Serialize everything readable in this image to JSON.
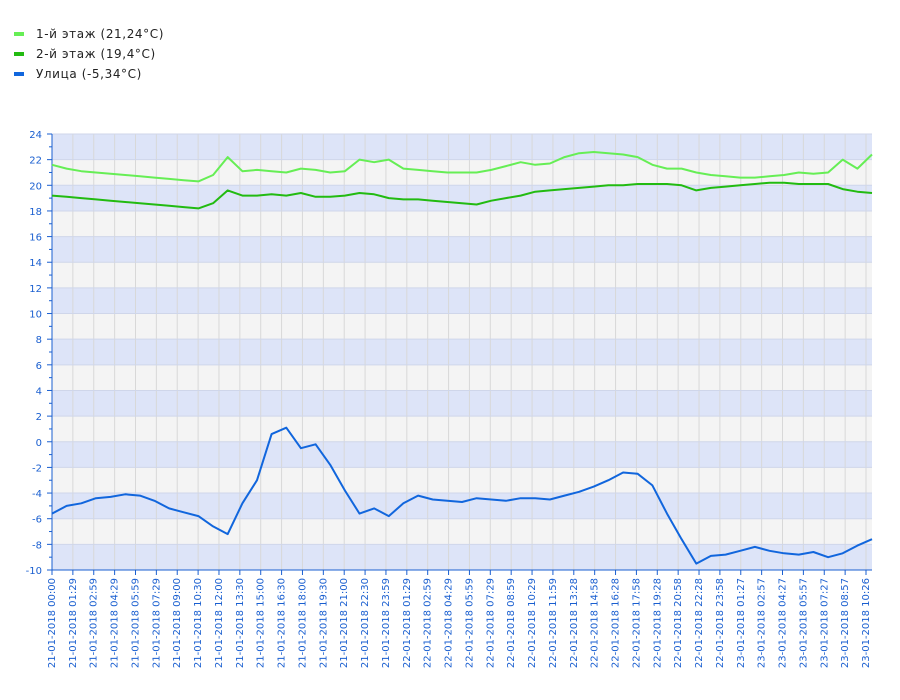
{
  "chart_data": {
    "type": "line",
    "title": "",
    "xlabel": "",
    "ylabel": "",
    "ylim": [
      -10,
      24
    ],
    "y_ticks": [
      -10,
      -8,
      -6,
      -4,
      -2,
      0,
      2,
      4,
      6,
      8,
      10,
      12,
      14,
      16,
      18,
      20,
      22,
      24
    ],
    "x_tick_labels": [
      "21-01-2018 00:00",
      "21-01-2018 01:29",
      "21-01-2018 02:59",
      "21-01-2018 04:29",
      "21-01-2018 05:59",
      "21-01-2018 07:29",
      "21-01-2018 09:00",
      "21-01-2018 10:30",
      "21-01-2018 12:00",
      "21-01-2018 13:30",
      "21-01-2018 15:00",
      "21-01-2018 16:30",
      "21-01-2018 18:00",
      "21-01-2018 19:30",
      "21-01-2018 21:00",
      "21-01-2018 22:30",
      "21-01-2018 23:59",
      "22-01-2018 01:29",
      "22-01-2018 02:59",
      "22-01-2018 04:29",
      "22-01-2018 05:59",
      "22-01-2018 07:29",
      "22-01-2018 08:59",
      "22-01-2018 10:29",
      "22-01-2018 11:59",
      "22-01-2018 13:28",
      "22-01-2018 14:58",
      "22-01-2018 16:28",
      "22-01-2018 17:58",
      "22-01-2018 19:28",
      "22-01-2018 20:58",
      "22-01-2018 22:28",
      "22-01-2018 23:58",
      "23-01-2018 01:27",
      "23-01-2018 02:57",
      "23-01-2018 04:27",
      "23-01-2018 05:57",
      "23-01-2018 07:27",
      "23-01-2018 08:57",
      "23-01-2018 10:26"
    ],
    "grid": true,
    "band_colors": [
      "#dde4f8",
      "#f4f4f4"
    ],
    "axis_color": "#1a5fd0",
    "legend_position": "top-left",
    "series": [
      {
        "name": "1-й этаж (21,24°C)",
        "color": "#66ee55",
        "values": [
          21.6,
          21.3,
          21.1,
          21.0,
          20.9,
          20.8,
          20.7,
          20.6,
          20.5,
          20.4,
          20.3,
          20.8,
          22.2,
          21.1,
          21.2,
          21.1,
          21.0,
          21.3,
          21.2,
          21.0,
          21.1,
          22.0,
          21.8,
          22.0,
          21.3,
          21.2,
          21.1,
          21.0,
          21.0,
          21.0,
          21.2,
          21.5,
          21.8,
          21.6,
          21.7,
          22.2,
          22.5,
          22.6,
          22.5,
          22.4,
          22.2,
          21.6,
          21.3,
          21.3,
          21.0,
          20.8,
          20.7,
          20.6,
          20.6,
          20.7,
          20.8,
          21.0,
          20.9,
          21.0,
          22.0,
          21.3,
          22.4
        ]
      },
      {
        "name": "2-й этаж (19,4°C)",
        "color": "#22bb11",
        "values": [
          19.2,
          19.1,
          19.0,
          18.9,
          18.8,
          18.7,
          18.6,
          18.5,
          18.4,
          18.3,
          18.2,
          18.6,
          19.6,
          19.2,
          19.2,
          19.3,
          19.2,
          19.4,
          19.1,
          19.1,
          19.2,
          19.4,
          19.3,
          19.0,
          18.9,
          18.9,
          18.8,
          18.7,
          18.6,
          18.5,
          18.8,
          19.0,
          19.2,
          19.5,
          19.6,
          19.7,
          19.8,
          19.9,
          20.0,
          20.0,
          20.1,
          20.1,
          20.1,
          20.0,
          19.6,
          19.8,
          19.9,
          20.0,
          20.1,
          20.2,
          20.2,
          20.1,
          20.1,
          20.1,
          19.7,
          19.5,
          19.4
        ]
      },
      {
        "name": "Улица (-5,34°C)",
        "color": "#1166dd",
        "values": [
          -5.6,
          -5.0,
          -4.8,
          -4.4,
          -4.3,
          -4.1,
          -4.2,
          -4.6,
          -5.2,
          -5.5,
          -5.8,
          -6.6,
          -7.2,
          -4.8,
          -3.0,
          0.6,
          1.1,
          -0.5,
          -0.2,
          -1.8,
          -3.8,
          -5.6,
          -5.2,
          -5.8,
          -4.8,
          -4.2,
          -4.5,
          -4.6,
          -4.7,
          -4.4,
          -4.5,
          -4.6,
          -4.4,
          -4.4,
          -4.5,
          -4.2,
          -3.9,
          -3.5,
          -3.0,
          -2.4,
          -2.5,
          -3.4,
          -5.6,
          -7.6,
          -9.5,
          -8.9,
          -8.8,
          -8.5,
          -8.2,
          -8.5,
          -8.7,
          -8.8,
          -8.6,
          -9.0,
          -8.7,
          -8.1,
          -7.6
        ]
      }
    ]
  }
}
